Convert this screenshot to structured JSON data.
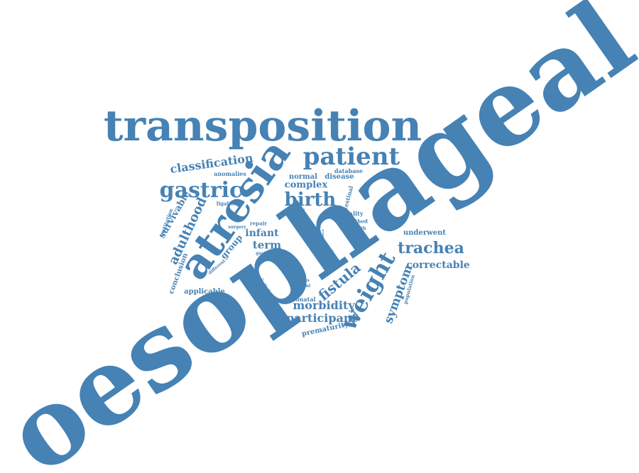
{
  "word_cloud": {
    "color": "#4682B4",
    "background": "#FFFFFF",
    "words": [
      "oesophageal",
      "transposition",
      "atresia",
      "patient",
      "gastric",
      "birth",
      "weight",
      "trachea",
      "fistula",
      "adulthood",
      "symptom",
      "classification",
      "morbidity",
      "participant",
      "correctable",
      "survivable",
      "term",
      "infant",
      "complex",
      "group",
      "underwent",
      "applicable",
      "conclusion",
      "prematurity",
      "normal",
      "disease",
      "database",
      "anomalies",
      "intestinal",
      "ligation",
      "institution",
      "quality",
      "method",
      "adult",
      "repair",
      "surgery",
      "population",
      "health",
      "year",
      "type",
      "care",
      "study",
      "gastro",
      "result",
      "different",
      "system",
      "review",
      "primary",
      "babies",
      "current",
      "number",
      "survival",
      "neonatal",
      "period",
      "based"
    ]
  }
}
